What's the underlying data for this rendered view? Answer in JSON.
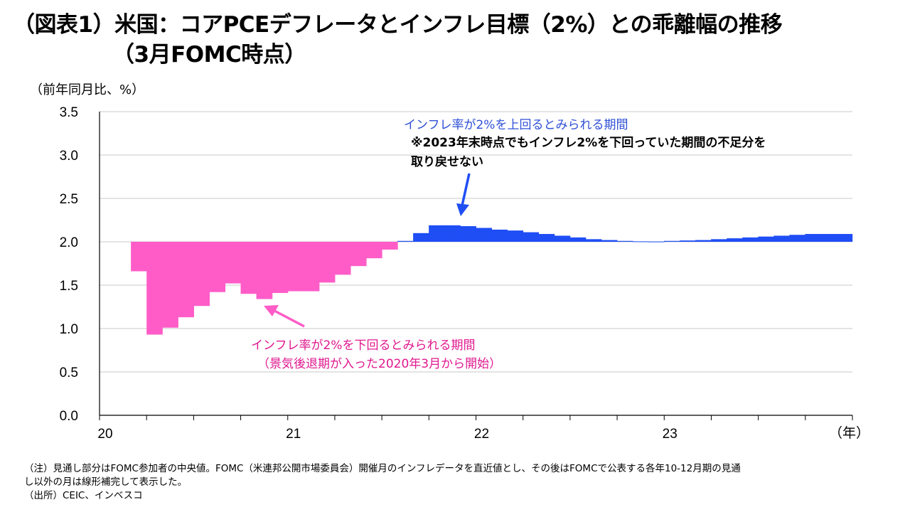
{
  "title": {
    "line1": "（図表1）米国：コアPCEデフレータとインフレ目標（2%）との乖離幅の推移",
    "line2": "（3月FOMC時点）"
  },
  "unit_label": "（前年同月比、%）",
  "chart_data": {
    "type": "area",
    "baseline": 2.0,
    "ylim": [
      0,
      3.5
    ],
    "yticks": [
      "0.0",
      "0.5",
      "1.0",
      "1.5",
      "2.0",
      "2.5",
      "3.0",
      "3.5"
    ],
    "xlim": [
      2020.0,
      2024.0
    ],
    "xticks": [
      {
        "label": "20",
        "x": 2020.0
      },
      {
        "label": "21",
        "x": 2021.0
      },
      {
        "label": "22",
        "x": 2022.0
      },
      {
        "label": "23",
        "x": 2023.0
      }
    ],
    "x_unit_label": "（年）",
    "grid": true,
    "month_step": 0.0833,
    "x_start": 2020.1667,
    "series_values": [
      1.66,
      0.93,
      1.01,
      1.13,
      1.26,
      1.42,
      1.52,
      1.4,
      1.34,
      1.41,
      1.43,
      1.43,
      1.53,
      1.62,
      1.72,
      1.81,
      1.91,
      2.01,
      2.1,
      2.19,
      2.19,
      2.18,
      2.16,
      2.14,
      2.13,
      2.11,
      2.09,
      2.07,
      2.05,
      2.03,
      2.02,
      2.01,
      2.005,
      2.003,
      2.01,
      2.015,
      2.02,
      2.03,
      2.04,
      2.05,
      2.06,
      2.07,
      2.08,
      2.09,
      2.09,
      2.09
    ],
    "colors": {
      "above": "#1f4ef5",
      "below": "#ff5cc8",
      "grid": "#c8c8c8",
      "axis": "#000000"
    }
  },
  "annotations": {
    "above_line1": "インフレ率が2%を上回るとみられる期間",
    "above_line2": "※2023年末時点でもインフレ2%を下回っていた期間の不足分を",
    "above_line3": "取り戻せない",
    "below_line1": "インフレ率が2%を下回るとみられる期間",
    "below_line2": "（景気後退期が入った2020年3月から開始）",
    "arrow_blue_color": "#1f4ef5",
    "arrow_pink_color": "#ff5cc8"
  },
  "notes": {
    "line1": "（注）見通し部分はFOMC参加者の中央値。FOMC（米連邦公開市場委員会）開催月のインフレデータを直近値とし、その後はFOMCで公表する各年10-12月期の見通",
    "line2": "し以外の月は線形補完して表示した。",
    "line3": "（出所）CEIC、インベスコ"
  }
}
